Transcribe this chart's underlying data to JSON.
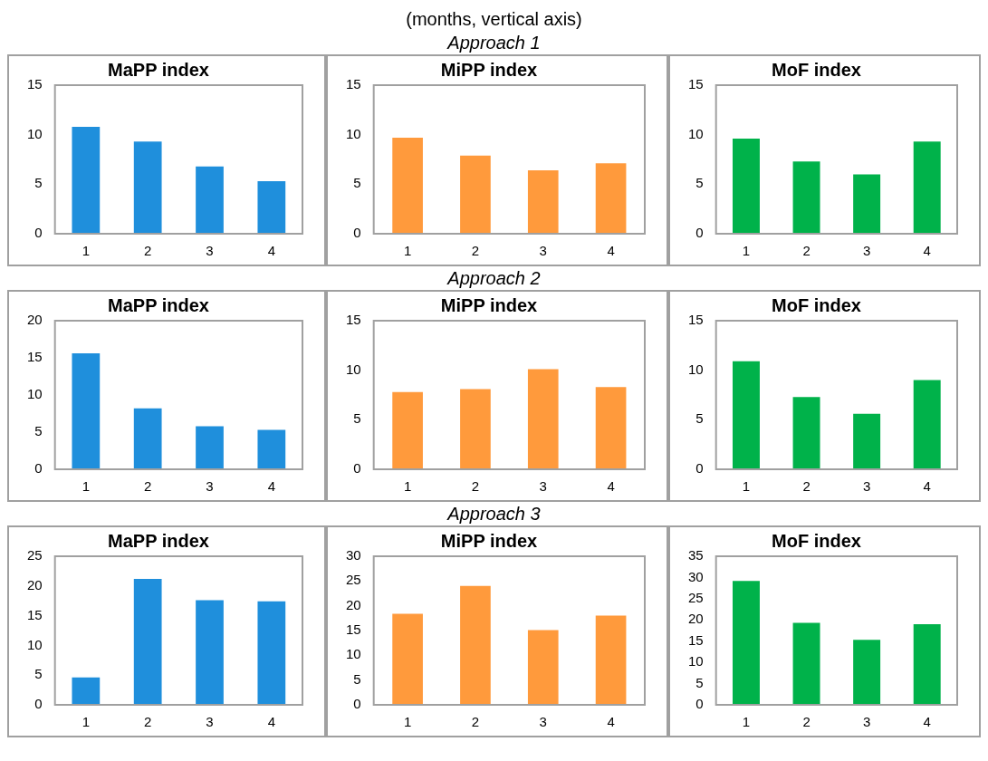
{
  "chart_data": [
    {
      "type": "other",
      "title": "(months, vertical axis)"
    },
    {
      "type": "other",
      "subtitle": "Approach 1"
    },
    {
      "type": "bar",
      "title": "MaPP index",
      "categories": [
        "1",
        "2",
        "3",
        "4"
      ],
      "values": [
        10.8,
        9.3,
        6.8,
        5.3
      ],
      "color": "#1f8fdc",
      "ylim": [
        0,
        15
      ],
      "yticks": [
        0,
        5,
        10,
        15
      ],
      "grid": false
    },
    {
      "type": "bar",
      "title": "MiPP index",
      "categories": [
        "1",
        "2",
        "3",
        "4"
      ],
      "values": [
        9.7,
        7.9,
        6.4,
        7.1
      ],
      "color": "#ff9a3c",
      "ylim": [
        0,
        15
      ],
      "yticks": [
        0,
        5,
        10,
        15
      ],
      "grid": false
    },
    {
      "type": "bar",
      "title": "MoF index",
      "categories": [
        "1",
        "2",
        "3",
        "4"
      ],
      "values": [
        9.6,
        7.3,
        6.0,
        9.3
      ],
      "color": "#00b24a",
      "ylim": [
        0,
        15
      ],
      "yticks": [
        0,
        5,
        10,
        15
      ],
      "grid": false
    },
    {
      "type": "other",
      "subtitle": "Approach 2"
    },
    {
      "type": "bar",
      "title": "MaPP index",
      "categories": [
        "1",
        "2",
        "3",
        "4"
      ],
      "values": [
        15.6,
        8.2,
        5.8,
        5.3
      ],
      "color": "#1f8fdc",
      "ylim": [
        0,
        20
      ],
      "yticks": [
        0,
        5,
        10,
        15,
        20
      ],
      "grid": false
    },
    {
      "type": "bar",
      "title": "MiPP index",
      "categories": [
        "1",
        "2",
        "3",
        "4"
      ],
      "values": [
        7.8,
        8.1,
        10.1,
        8.3
      ],
      "color": "#ff9a3c",
      "ylim": [
        0,
        15
      ],
      "yticks": [
        0,
        5,
        10,
        15
      ],
      "grid": false
    },
    {
      "type": "bar",
      "title": "MoF index",
      "categories": [
        "1",
        "2",
        "3",
        "4"
      ],
      "values": [
        10.9,
        7.3,
        5.6,
        9.0
      ],
      "color": "#00b24a",
      "ylim": [
        0,
        15
      ],
      "yticks": [
        0,
        5,
        10,
        15
      ],
      "grid": false
    },
    {
      "type": "other",
      "subtitle": "Approach 3"
    },
    {
      "type": "bar",
      "title": "MaPP index",
      "categories": [
        "1",
        "2",
        "3",
        "4"
      ],
      "values": [
        4.6,
        21.2,
        17.6,
        17.4
      ],
      "color": "#1f8fdc",
      "ylim": [
        0,
        25
      ],
      "yticks": [
        0,
        5,
        10,
        15,
        20,
        25
      ],
      "grid": false
    },
    {
      "type": "bar",
      "title": "MiPP index",
      "categories": [
        "1",
        "2",
        "3",
        "4"
      ],
      "values": [
        18.4,
        24.0,
        15.1,
        18.0
      ],
      "color": "#ff9a3c",
      "ylim": [
        0,
        30
      ],
      "yticks": [
        0,
        5,
        10,
        15,
        20,
        25,
        30
      ],
      "grid": false
    },
    {
      "type": "bar",
      "title": "MoF index",
      "categories": [
        "1",
        "2",
        "3",
        "4"
      ],
      "values": [
        29.2,
        19.3,
        15.3,
        19.0
      ],
      "color": "#00b24a",
      "ylim": [
        0,
        35
      ],
      "yticks": [
        0,
        5,
        10,
        15,
        20,
        25,
        30,
        35
      ],
      "grid": false
    }
  ]
}
